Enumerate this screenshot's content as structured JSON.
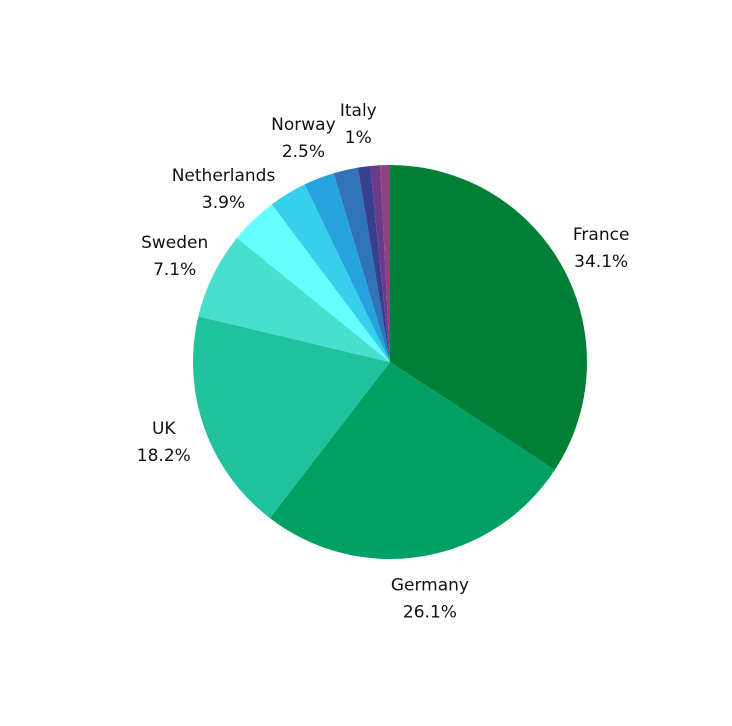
{
  "chart_data": {
    "type": "pie",
    "categories": [
      "France",
      "Germany",
      "UK",
      "Sweden",
      "Netherlands",
      null,
      "Norway",
      null,
      "Italy",
      null,
      null
    ],
    "values": [
      34.1,
      26.1,
      18.2,
      7.1,
      3.9,
      3.1,
      2.5,
      2.0,
      1,
      0.8,
      0.8
    ],
    "value_labels": [
      "34.1%",
      "26.1%",
      "18.2%",
      "7.1%",
      "3.9%",
      null,
      "2.5%",
      null,
      "1%",
      null,
      null
    ],
    "colors": [
      "#007f36",
      "#00a064",
      "#1fc29d",
      "#46e0cd",
      "#66ffff",
      "#38cfee",
      "#25a3dc",
      "#2f74b6",
      "#373f8f",
      "#6a3b8a",
      "#93407c"
    ]
  }
}
